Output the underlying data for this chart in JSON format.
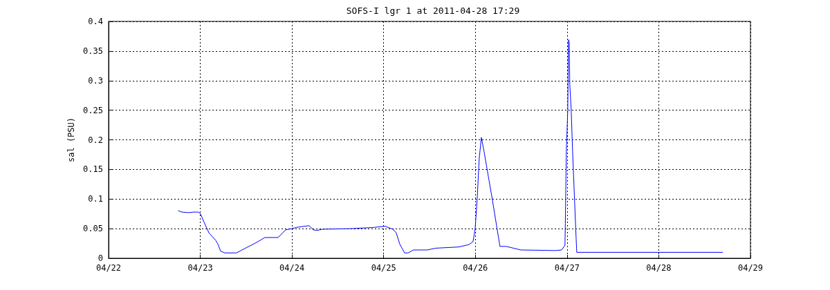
{
  "chart_data": {
    "type": "line",
    "title": "SOFS-I lgr 1 at 2011-04-28 17:29",
    "ylabel": "sal (PSU)",
    "x": [
      "2011-04-22T18:17",
      "2011-04-22T19:11",
      "2011-04-22T21:00",
      "2011-04-22T22:16",
      "2011-04-22T23:32",
      "2011-04-23T00:04",
      "2011-04-23T00:59",
      "2011-04-23T02:15",
      "2011-04-23T04:04",
      "2011-04-23T04:36",
      "2011-04-23T05:19",
      "2011-04-23T06:25",
      "2011-04-23T09:29",
      "2011-04-23T10:56",
      "2011-04-23T15:06",
      "2011-04-23T16:54",
      "2011-04-23T20:21",
      "2011-04-23T22:21",
      "2011-04-23T23:58",
      "2011-04-24T01:03",
      "2011-04-24T04:29",
      "2011-04-24T05:34",
      "2011-04-24T06:29",
      "2011-04-24T08:07",
      "2011-04-24T15:22",
      "2011-04-24T21:19",
      "2011-04-25T00:24",
      "2011-04-25T02:24",
      "2011-04-25T03:17",
      "2011-04-25T04:12",
      "2011-04-25T05:28",
      "2011-04-25T06:22",
      "2011-04-25T07:49",
      "2011-04-25T11:27",
      "2011-04-25T13:36",
      "2011-04-25T19:35",
      "2011-04-25T22:18",
      "2011-04-25T23:23",
      "2011-04-25T23:56",
      "2011-04-26T00:29",
      "2011-04-26T01:00",
      "2011-04-26T01:34",
      "2011-04-26T02:17",
      "2011-04-26T04:28",
      "2011-04-26T06:26",
      "2011-04-26T08:04",
      "2011-04-26T11:53",
      "2011-04-26T20:56",
      "2011-04-26T22:34",
      "2011-04-26T23:27",
      "2011-04-26T23:33",
      "2011-04-26T23:49",
      "2011-04-27T00:11",
      "2011-04-27T00:22",
      "2011-04-27T00:33",
      "2011-04-27T00:43",
      "2011-04-27T01:05",
      "2011-04-27T01:27",
      "2011-04-27T01:59",
      "2011-04-27T02:21",
      "2011-04-27T02:32",
      "2011-04-28T16:43"
    ],
    "series": [
      {
        "color": "#0000ff",
        "values": [
          0.08,
          0.078,
          0.077,
          0.078,
          0.078,
          0.075,
          0.061,
          0.043,
          0.03,
          0.024,
          0.012,
          0.009,
          0.009,
          0.014,
          0.028,
          0.035,
          0.035,
          0.048,
          0.05,
          0.052,
          0.055,
          0.048,
          0.047,
          0.049,
          0.05,
          0.052,
          0.054,
          0.049,
          0.043,
          0.024,
          0.009,
          0.009,
          0.014,
          0.014,
          0.017,
          0.019,
          0.023,
          0.028,
          0.049,
          0.101,
          0.168,
          0.204,
          0.18,
          0.098,
          0.02,
          0.02,
          0.014,
          0.013,
          0.014,
          0.022,
          0.059,
          0.183,
          0.25,
          0.369,
          0.366,
          0.293,
          0.25,
          0.18,
          0.094,
          0.037,
          0.01,
          0.01
        ]
      }
    ],
    "xlim": [
      "2011-04-22",
      "2011-04-29"
    ],
    "xticks": [
      {
        "value": "2011-04-22",
        "label": "04/22"
      },
      {
        "value": "2011-04-23",
        "label": "04/23"
      },
      {
        "value": "2011-04-24",
        "label": "04/24"
      },
      {
        "value": "2011-04-25",
        "label": "04/25"
      },
      {
        "value": "2011-04-26",
        "label": "04/26"
      },
      {
        "value": "2011-04-27",
        "label": "04/27"
      },
      {
        "value": "2011-04-28",
        "label": "04/28"
      },
      {
        "value": "2011-04-29",
        "label": "04/29"
      }
    ],
    "ylim": [
      0,
      0.4
    ],
    "yticks": [
      0,
      0.05,
      0.1,
      0.15,
      0.2,
      0.25,
      0.3,
      0.35,
      0.4
    ],
    "grid": true,
    "marker": "none",
    "line_style": "solid"
  }
}
